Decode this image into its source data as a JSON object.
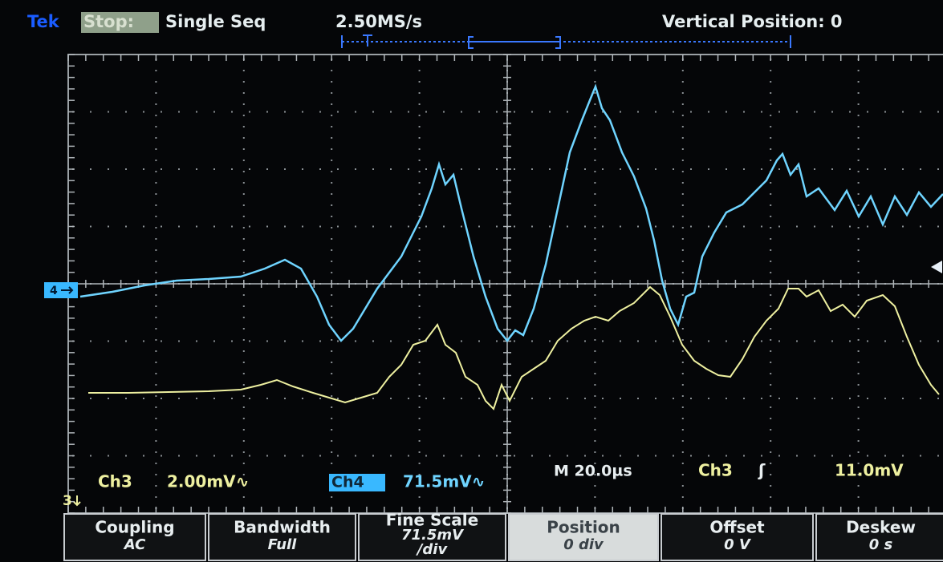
{
  "header": {
    "brand": "Tek",
    "status": "Stop:",
    "mode": "Single Seq",
    "sample_rate": "2.50MS/s",
    "readout": "Vertical Position: 0"
  },
  "markers": {
    "ch4": "4",
    "ch3": "3"
  },
  "readouts": {
    "ch3_label": "Ch3",
    "ch3_scale": "2.00mV∿",
    "ch4_label": "Ch4",
    "ch4_scale": "71.5mV∿",
    "timebase": "M 20.0µs",
    "trigger_source": "Ch3",
    "trigger_slope": "ʃ",
    "trigger_level": "11.0mV"
  },
  "menu": [
    {
      "label": "Coupling",
      "lines": [
        "AC"
      ]
    },
    {
      "label": "Bandwidth",
      "lines": [
        "Full"
      ]
    },
    {
      "label": "Fine Scale",
      "lines": [
        "71.5mV",
        "/div"
      ]
    },
    {
      "label": "Position",
      "lines": [
        "0 div"
      ]
    },
    {
      "label": "Offset",
      "lines": [
        "0 V"
      ]
    },
    {
      "label": "Deskew",
      "lines": [
        "0 s"
      ]
    }
  ]
}
